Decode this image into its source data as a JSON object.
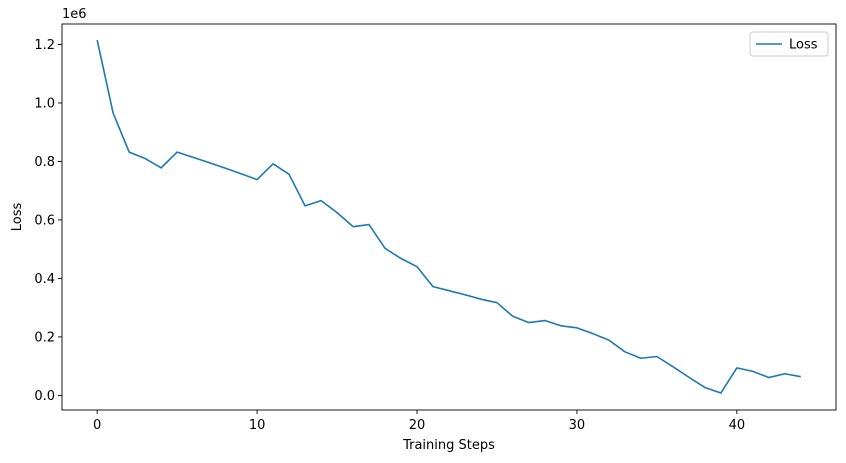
{
  "chart_data": {
    "type": "line",
    "title": "",
    "xlabel": "Training Steps",
    "ylabel": "Loss",
    "y_scale_label": "1e6",
    "xlim": [
      -2.2,
      46.2
    ],
    "ylim": [
      -0.05,
      1.27
    ],
    "x_ticks": [
      0,
      10,
      20,
      30,
      40
    ],
    "x_tick_labels": [
      "0",
      "10",
      "20",
      "30",
      "40"
    ],
    "y_ticks": [
      0.0,
      0.2,
      0.4,
      0.6,
      0.8,
      1.0,
      1.2
    ],
    "y_tick_labels": [
      "0.0",
      "0.2",
      "0.4",
      "0.6",
      "0.8",
      "1.0",
      "1.2"
    ],
    "grid": false,
    "legend_position": "top-right",
    "series": [
      {
        "name": "Loss",
        "color": "#1f77b4",
        "x": [
          0,
          1,
          2,
          3,
          4,
          5,
          6,
          7,
          8,
          9,
          10,
          11,
          12,
          13,
          14,
          15,
          16,
          17,
          18,
          19,
          20,
          21,
          22,
          23,
          24,
          25,
          26,
          27,
          28,
          29,
          30,
          31,
          32,
          33,
          34,
          35,
          36,
          37,
          38,
          39,
          40,
          41,
          42,
          43,
          44
        ],
        "y": [
          1.215,
          0.965,
          0.832,
          0.81,
          0.778,
          0.832,
          0.814,
          0.796,
          0.777,
          0.758,
          0.738,
          0.792,
          0.756,
          0.648,
          0.666,
          0.625,
          0.577,
          0.584,
          0.503,
          0.468,
          0.44,
          0.372,
          0.358,
          0.344,
          0.329,
          0.317,
          0.27,
          0.249,
          0.256,
          0.238,
          0.231,
          0.211,
          0.189,
          0.149,
          0.127,
          0.133,
          0.098,
          0.062,
          0.027,
          0.008,
          0.094,
          0.082,
          0.061,
          0.074,
          0.064
        ]
      }
    ]
  }
}
